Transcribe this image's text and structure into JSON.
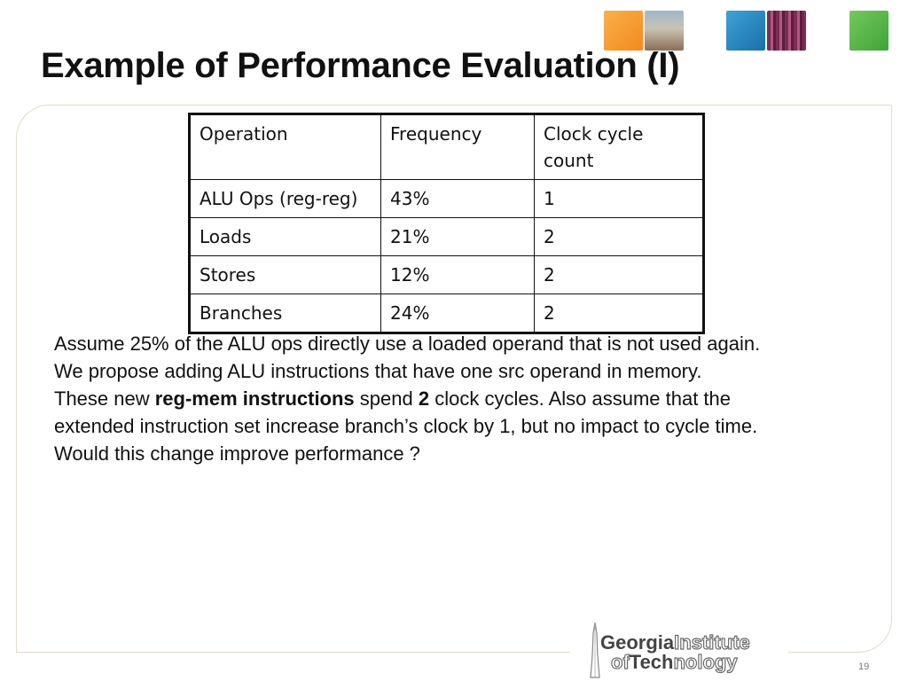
{
  "slide": {
    "title": "Example of Performance Evaluation (I)",
    "page_number": "19"
  },
  "table": {
    "headers": [
      "Operation",
      "Frequency",
      "Clock cycle count"
    ],
    "rows": [
      [
        "ALU Ops (reg-reg)",
        "43%",
        "1"
      ],
      [
        "Loads",
        "21%",
        "2"
      ],
      [
        "Stores",
        "12%",
        "2"
      ],
      [
        "Branches",
        "24%",
        "2"
      ]
    ]
  },
  "body": {
    "line1": "Assume 25% of the ALU ops directly use a loaded operand that is not used again.",
    "line2": "We propose adding ALU instructions that have one src operand in memory.",
    "line3_pre": "These new ",
    "line3_bold1": "reg-mem instructions",
    "line3_mid": " spend ",
    "line3_bold2": "2",
    "line3_post": " clock cycles.  Also assume that the",
    "line4": "extended instruction set increase branch’s clock by 1, but no impact to cycle time.",
    "line5": "Would this change improve performance ?"
  },
  "logo": {
    "georgia": "Georgia",
    "institute": "Institute",
    "of": "of",
    "tech": "Tech",
    "nology": "nology"
  },
  "colors": {
    "deco_orange": "#f28a1e",
    "deco_blue": "#1c6fa8",
    "deco_green": "#3fa33a",
    "frame_border": "#e2dccb"
  }
}
